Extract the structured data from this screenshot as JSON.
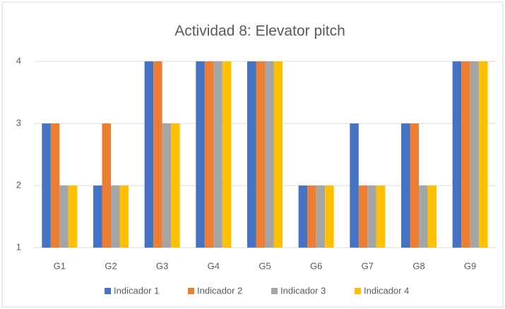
{
  "chart_data": {
    "type": "bar",
    "title": "Actividad 8: Elevator pitch",
    "categories": [
      "G1",
      "G2",
      "G3",
      "G4",
      "G5",
      "G6",
      "G7",
      "G8",
      "G9"
    ],
    "series": [
      {
        "name": "Indicador 1",
        "color": "#4472c4",
        "values": [
          3,
          2,
          4,
          4,
          4,
          2,
          3,
          3,
          4
        ]
      },
      {
        "name": "Indicador 2",
        "color": "#ed7d31",
        "values": [
          3,
          3,
          4,
          4,
          4,
          2,
          2,
          3,
          4
        ]
      },
      {
        "name": "Indicador 3",
        "color": "#a5a5a5",
        "values": [
          2,
          2,
          3,
          4,
          4,
          2,
          2,
          2,
          4
        ]
      },
      {
        "name": "Indicador 4",
        "color": "#ffc000",
        "values": [
          2,
          2,
          3,
          4,
          4,
          2,
          2,
          2,
          4
        ]
      }
    ],
    "ylim": [
      1,
      4
    ],
    "yticks": [
      1,
      2,
      3,
      4
    ],
    "grid": true,
    "legend": "bottom"
  }
}
